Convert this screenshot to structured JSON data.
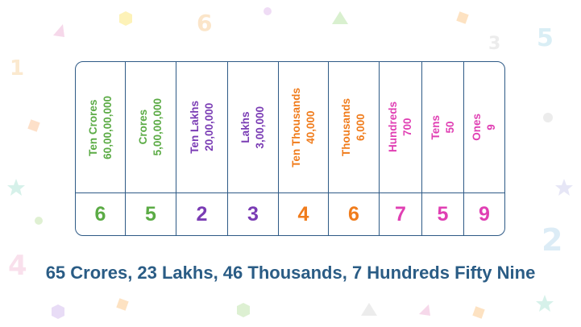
{
  "columns": [
    {
      "name": "Ten Crores",
      "value": "60,00,00,000",
      "digit": "6",
      "color": "#5bab45"
    },
    {
      "name": "Crores",
      "value": "5,00,00,000",
      "digit": "5",
      "color": "#5bab45"
    },
    {
      "name": "Ten Lakhs",
      "value": "20,00,000",
      "digit": "2",
      "color": "#7a3cb4"
    },
    {
      "name": "Lakhs",
      "value": "3,00,000",
      "digit": "3",
      "color": "#7a3cb4"
    },
    {
      "name": "Ten Thousands",
      "value": "40,000",
      "digit": "4",
      "color": "#f07c1c"
    },
    {
      "name": "Thousands",
      "value": "6,000",
      "digit": "6",
      "color": "#f07c1c"
    },
    {
      "name": "Hundreds",
      "value": "700",
      "digit": "7",
      "color": "#e03fb3"
    },
    {
      "name": "Tens",
      "value": "50",
      "digit": "5",
      "color": "#e03fb3"
    },
    {
      "name": "Ones",
      "value": "9",
      "digit": "9",
      "color": "#e03fb3"
    }
  ],
  "caption": "65 Crores, 23 Lakhs, 46 Thousands, 7 Hundreds Fifty Nine",
  "decorations": {
    "numbers": [
      "6",
      "3",
      "5",
      "1",
      "4",
      "2"
    ]
  }
}
